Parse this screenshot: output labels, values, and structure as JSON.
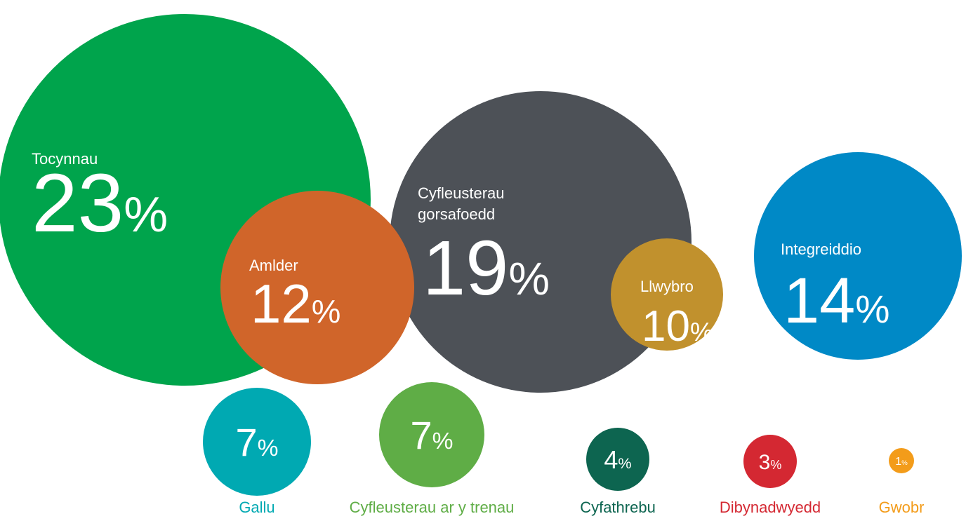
{
  "chart_data": {
    "type": "bubble",
    "categories": [
      "Tocynnau",
      "Amlder",
      "Cyfleusterau gorsafoedd",
      "Llwybro",
      "Integreiddio",
      "Gallu",
      "Cyfleusterau ar y trenau",
      "Cyfathrebu",
      "Dibynadwyedd",
      "Gwobr"
    ],
    "values": [
      23,
      12,
      19,
      10,
      14,
      7,
      7,
      4,
      3,
      1
    ],
    "colors": [
      "#00a44c",
      "#d0652a",
      "#4d5157",
      "#c1912d",
      "#0089c6",
      "#00a9b2",
      "#5fad46",
      "#0d6550",
      "#d42832",
      "#f39c1a"
    ],
    "unit": "%"
  }
}
